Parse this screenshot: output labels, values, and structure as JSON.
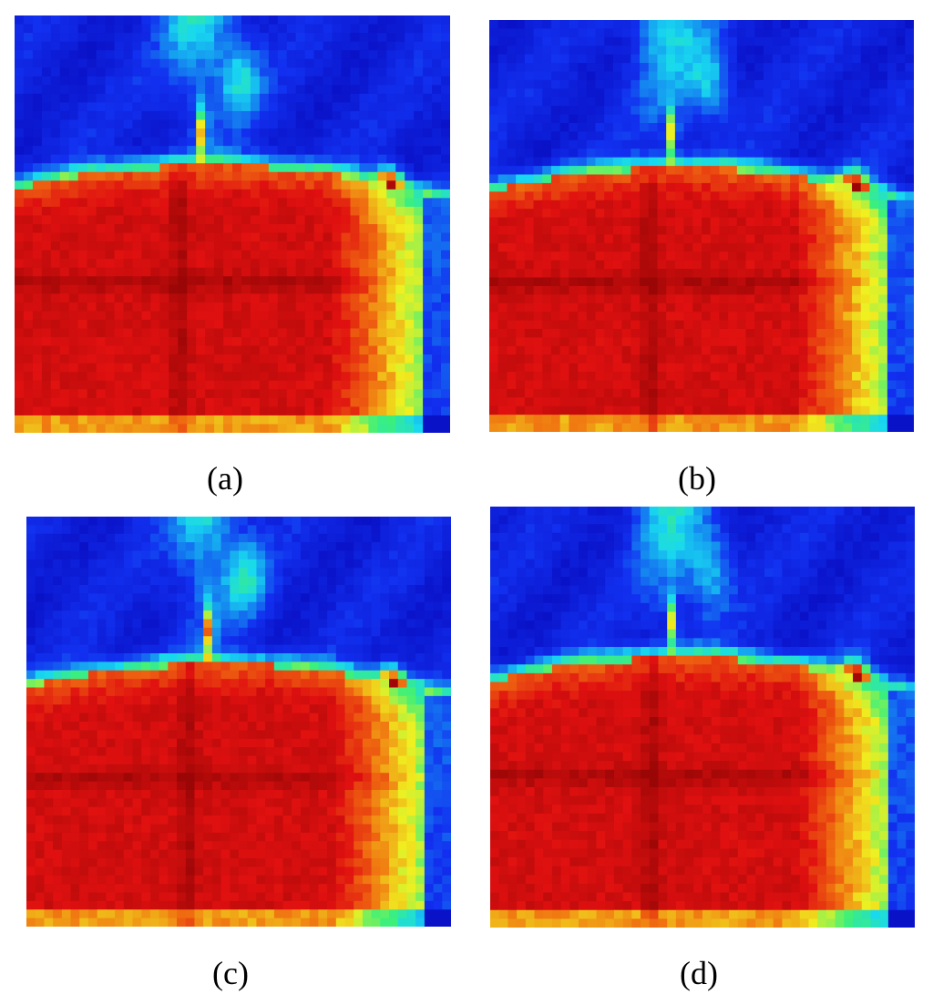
{
  "figure": {
    "panels": [
      {
        "label": "(a)"
      },
      {
        "label": "(b)"
      },
      {
        "label": "(c)"
      },
      {
        "label": "(d)"
      }
    ]
  },
  "colors": {
    "deep_blue": "#0a12c8",
    "blue": "#1230f0",
    "cyan": "#18d8f0",
    "green": "#3cf07a",
    "yellow": "#f0f020",
    "orange": "#f07010",
    "red": "#e01010",
    "dark_red": "#9a0606"
  }
}
